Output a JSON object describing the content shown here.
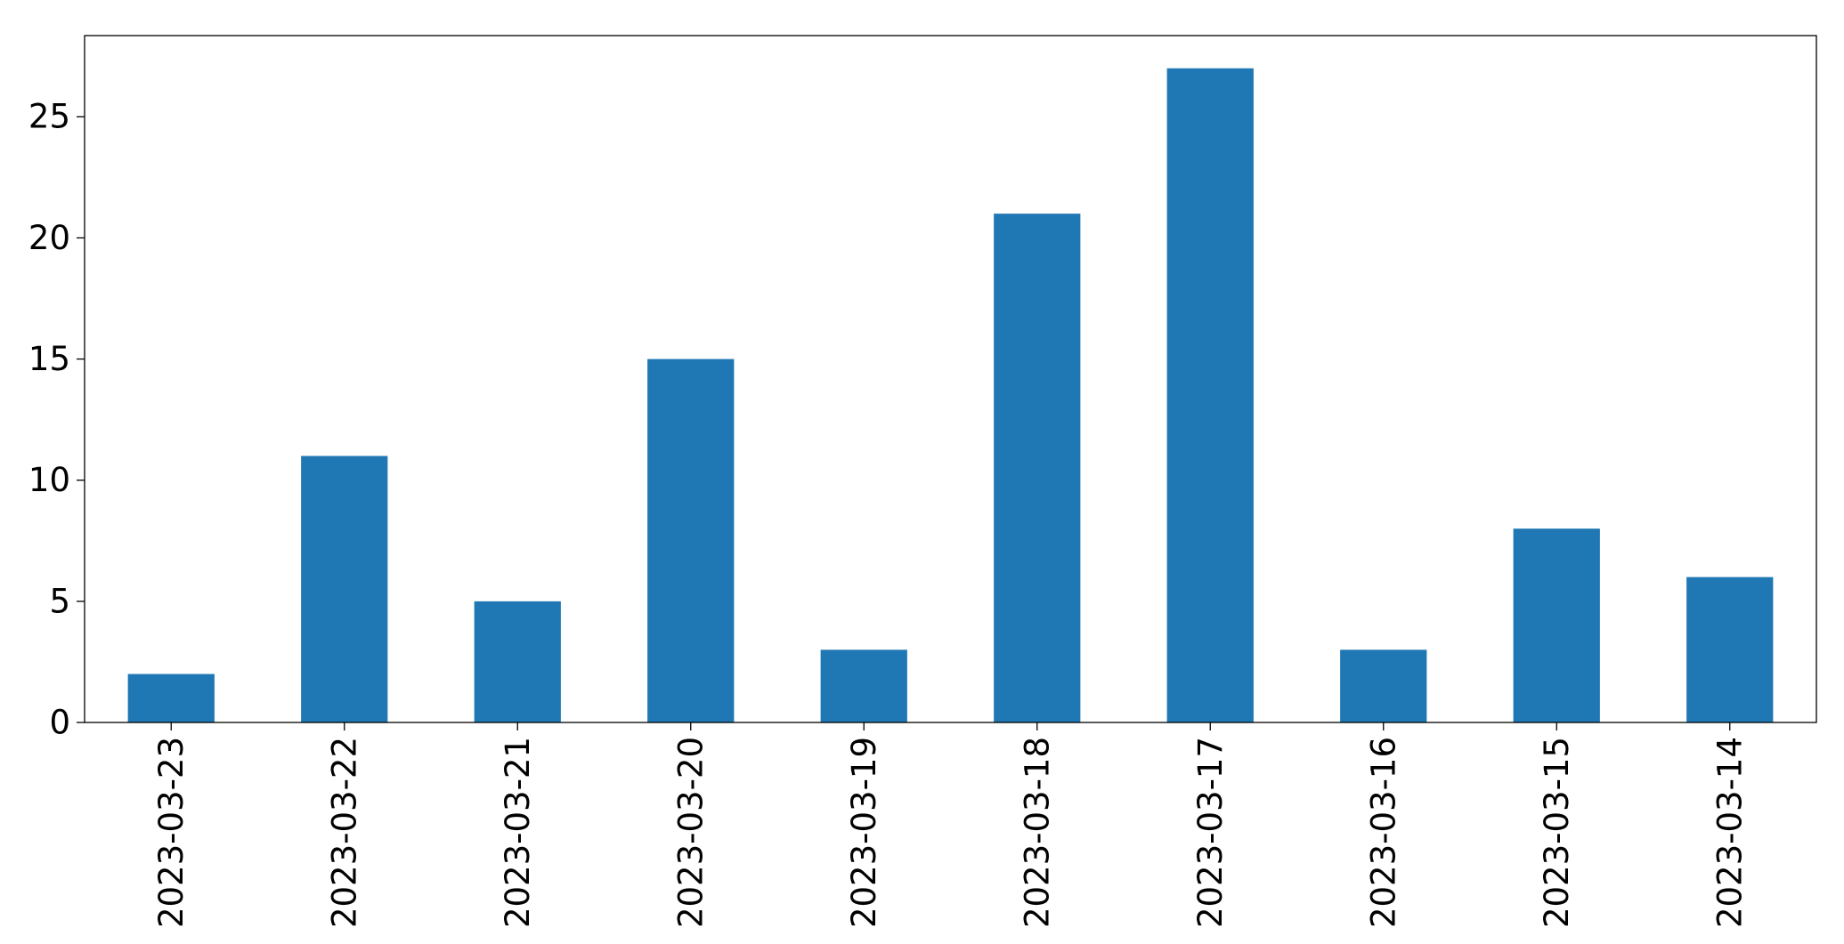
{
  "chart_data": {
    "type": "bar",
    "categories": [
      "2023-03-23",
      "2023-03-22",
      "2023-03-21",
      "2023-03-20",
      "2023-03-19",
      "2023-03-18",
      "2023-03-17",
      "2023-03-16",
      "2023-03-15",
      "2023-03-14"
    ],
    "values": [
      2,
      11,
      5,
      15,
      3,
      21,
      27,
      3,
      8,
      6
    ],
    "title": "",
    "xlabel": "",
    "ylabel": "",
    "ylim": [
      0,
      28.35
    ],
    "yticks": [
      0,
      5,
      10,
      15,
      20,
      25
    ],
    "grid": false,
    "bar_color": "#1f77b4"
  }
}
